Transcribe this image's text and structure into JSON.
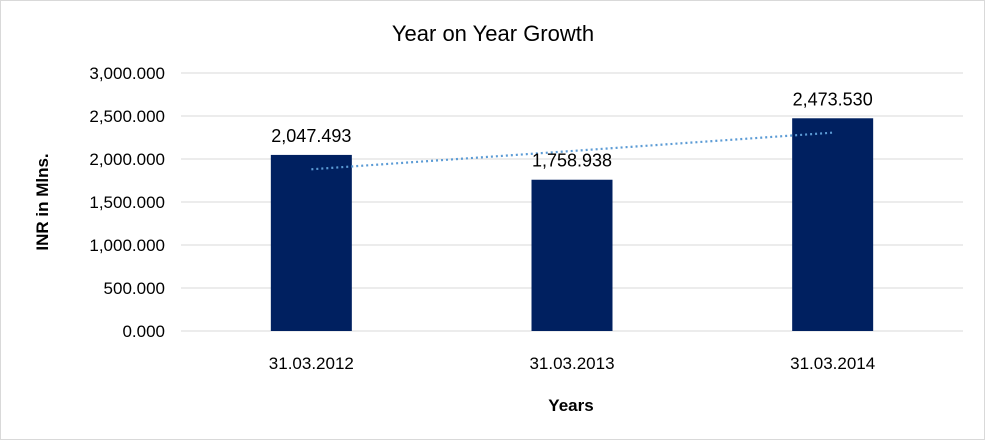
{
  "chart_data": {
    "type": "bar",
    "title": "Year on Year Growth",
    "xlabel": "Years",
    "ylabel": "INR in Mlns.",
    "categories": [
      "31.03.2012",
      "31.03.2013",
      "31.03.2014"
    ],
    "values": [
      2047.493,
      1758.938,
      2473.53
    ],
    "data_labels": [
      "2,047.493",
      "1,758.938",
      "2,473.530"
    ],
    "ylim": [
      0,
      3000
    ],
    "yticks": [
      0,
      500,
      1000,
      1500,
      2000,
      2500,
      3000
    ],
    "ytick_labels": [
      "0.000",
      "500.000",
      "1,000.000",
      "1,500.000",
      "2,000.000",
      "2,500.000",
      "3,000.000"
    ],
    "grid": true,
    "legend": "none",
    "trendline": {
      "type": "linear",
      "style": "dotted",
      "color": "#5b9bd5"
    },
    "colors": {
      "bar": "#002060",
      "grid": "#d9d9d9",
      "border": "#d9d9d9"
    }
  }
}
